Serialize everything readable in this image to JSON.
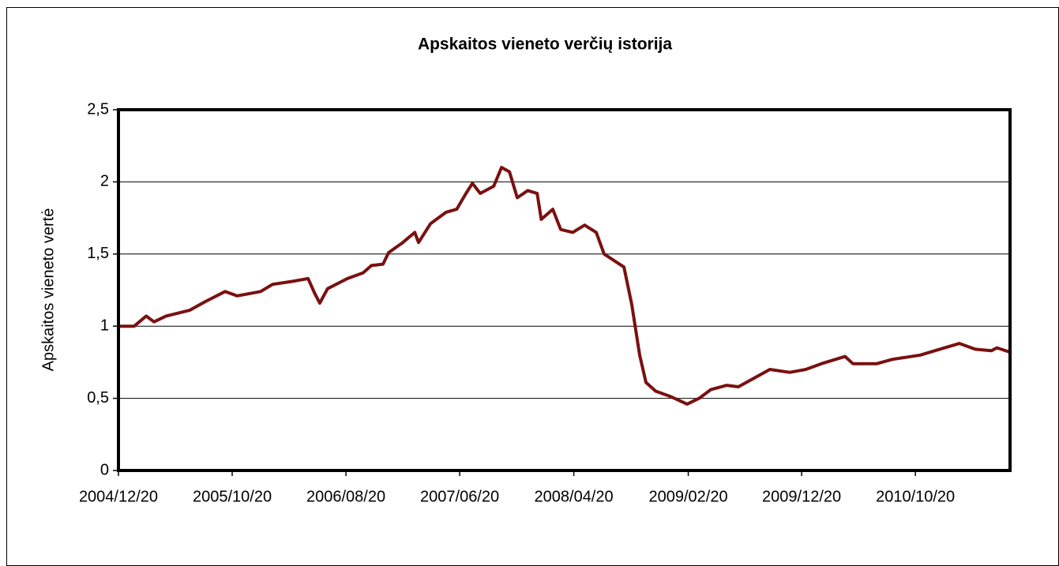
{
  "chart_data": {
    "type": "line",
    "title": "Apskaitos vieneto verčių istorija",
    "y_label": "Apskaitos vieneto vertė",
    "x": [
      "2004/12/20",
      "2005/01/31",
      "2005/03/04",
      "2005/03/25",
      "2005/04/26",
      "2005/06/28",
      "2005/08/09",
      "2005/10/01",
      "2005/11/02",
      "2006/01/04",
      "2006/02/05",
      "2006/03/29",
      "2006/05/11",
      "2006/05/28",
      "2006/06/11",
      "2006/07/02",
      "2006/08/24",
      "2006/10/05",
      "2006/10/27",
      "2006/11/27",
      "2006/12/12",
      "2007/01/19",
      "2007/02/20",
      "2007/03/02",
      "2007/04/03",
      "2007/05/15",
      "2007/06/12",
      "2007/07/07",
      "2007/07/24",
      "2007/08/14",
      "2007/09/19",
      "2007/10/10",
      "2007/10/31",
      "2007/11/21",
      "2007/12/19",
      "2008/01/13",
      "2008/01/24",
      "2008/02/24",
      "2008/03/16",
      "2008/04/17",
      "2008/05/19",
      "2008/06/19",
      "2008/07/10",
      "2008/09/01",
      "2008/09/22",
      "2008/10/13",
      "2008/10/30",
      "2008/11/25",
      "2009/01/06",
      "2009/02/17",
      "2009/03/21",
      "2009/04/21",
      "2009/06/03",
      "2009/07/04",
      "2009/09/05",
      "2009/09/26",
      "2009/11/18",
      "2009/12/31",
      "2010/02/11",
      "2010/04/15",
      "2010/05/06",
      "2010/07/09",
      "2010/08/20",
      "2010/11/02",
      "2010/12/24",
      "2011/02/15",
      "2011/03/29",
      "2011/05/11",
      "2011/05/26",
      "2011/06/30"
    ],
    "series": [
      {
        "name": "Apskaitos vieneto vertė",
        "color": "#7a1010",
        "values": [
          1.0,
          1.0,
          1.07,
          1.03,
          1.07,
          1.11,
          1.17,
          1.24,
          1.21,
          1.24,
          1.29,
          1.31,
          1.33,
          1.23,
          1.16,
          1.26,
          1.33,
          1.37,
          1.42,
          1.43,
          1.51,
          1.58,
          1.65,
          1.58,
          1.71,
          1.79,
          1.81,
          1.92,
          1.99,
          1.92,
          1.97,
          2.1,
          2.07,
          1.89,
          1.94,
          1.92,
          1.74,
          1.81,
          1.67,
          1.65,
          1.7,
          1.65,
          1.5,
          1.41,
          1.15,
          0.8,
          0.61,
          0.55,
          0.51,
          0.46,
          0.5,
          0.56,
          0.59,
          0.58,
          0.67,
          0.7,
          0.68,
          0.7,
          0.74,
          0.79,
          0.74,
          0.74,
          0.77,
          0.8,
          0.84,
          0.88,
          0.84,
          0.83,
          0.85,
          0.82
        ]
      }
    ],
    "xlim": [
      "2004/12/20",
      "2011/06/30"
    ],
    "xticks": [
      "2004/12/20",
      "2005/10/20",
      "2006/08/20",
      "2007/06/20",
      "2008/04/20",
      "2009/02/20",
      "2009/12/20",
      "2010/10/20"
    ],
    "ylim": [
      0,
      2.5
    ],
    "yticks": [
      0,
      {
        "value": 0.5,
        "label": "0,5"
      },
      1,
      {
        "value": 1.5,
        "label": "1,5"
      },
      2,
      {
        "value": 2.5,
        "label": "2,5"
      }
    ],
    "grid": true
  }
}
